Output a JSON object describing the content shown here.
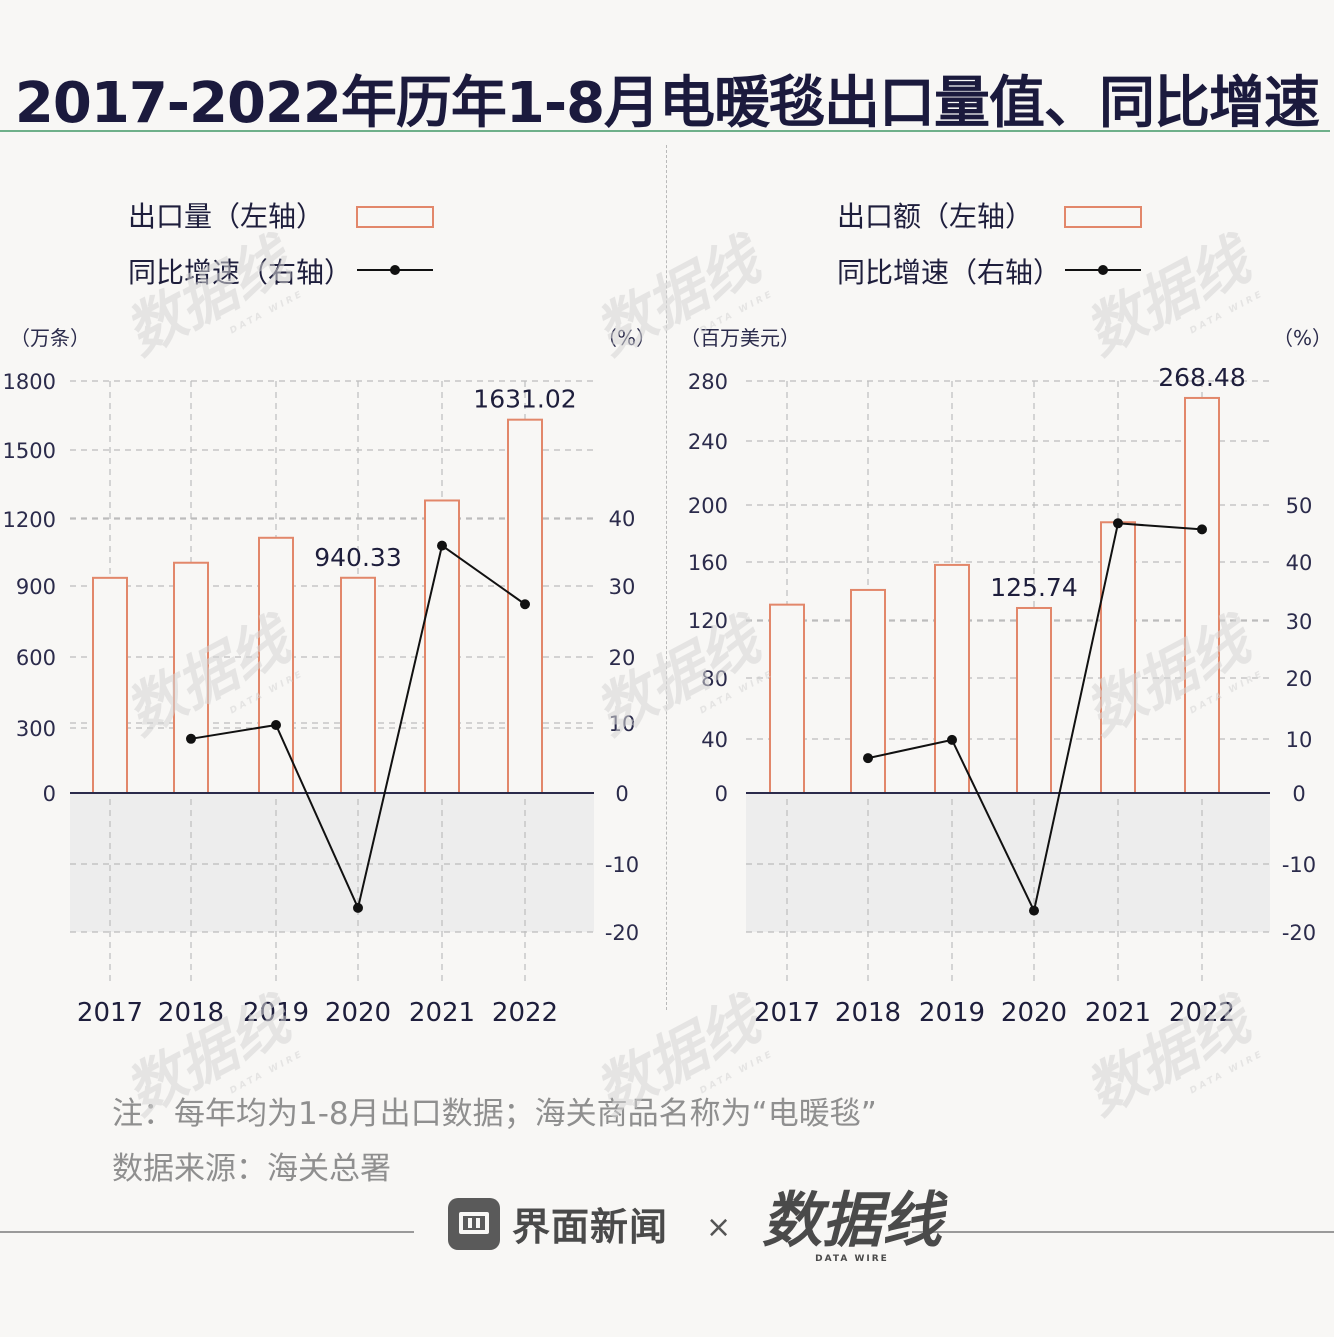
{
  "title": "2017-2022年历年1-8月电暖毯出口量值、同比增速",
  "notes": {
    "note": "注：每年均为1-8月出口数据；海关商品名称为“电暖毯”",
    "source": "数据来源：海关总署"
  },
  "footer": {
    "brand_left": "界面新闻",
    "separator": "×",
    "brand_right": "数据线",
    "brand_right_sub": "DATA WIRE"
  },
  "watermark": {
    "text": "数据线",
    "sub": "DATA WIRE"
  },
  "colors": {
    "bar_stroke": "#e2876a",
    "line": "#111111",
    "grid": "#bdbdbd",
    "negative_band": "#ededed",
    "axis": "#2b2b4b"
  },
  "chart_data": [
    {
      "type": "bar+line",
      "categories": [
        "2017",
        "2018",
        "2019",
        "2020",
        "2021",
        "2022"
      ],
      "legend": [
        "出口量（左轴）",
        "同比增速（右轴）"
      ],
      "left_unit": "（万条）",
      "right_unit": "（%）",
      "left_ticks": [
        "1800",
        "1500",
        "1200",
        "900",
        "600",
        "300",
        "0"
      ],
      "right_ticks": [
        "40",
        "30",
        "20",
        "10",
        "0",
        "-10",
        "-20"
      ],
      "series": [
        {
          "name": "出口量（左轴）",
          "axis": "left",
          "values": [
            940,
            1006,
            1115,
            940.33,
            1278,
            1631.02
          ]
        },
        {
          "name": "同比增速（右轴）",
          "axis": "right",
          "values": [
            null,
            8,
            10,
            -16.5,
            36,
            27.5
          ]
        }
      ],
      "data_labels": [
        {
          "index": 3,
          "text": "940.33"
        },
        {
          "index": 5,
          "text": "1631.02"
        }
      ]
    },
    {
      "type": "bar+line",
      "categories": [
        "2017",
        "2018",
        "2019",
        "2020",
        "2021",
        "2022"
      ],
      "legend": [
        "出口额（左轴）",
        "同比增速（右轴）"
      ],
      "left_unit": "（百万美元）",
      "right_unit": "（%）",
      "left_ticks": [
        "280",
        "240",
        "200",
        "160",
        "120",
        "80",
        "40",
        "0"
      ],
      "right_ticks": [
        "50",
        "40",
        "30",
        "20",
        "10",
        "0",
        "-10",
        "-20"
      ],
      "series": [
        {
          "name": "出口额（左轴）",
          "axis": "left",
          "values": [
            128,
            138,
            155,
            125.74,
            184,
            268.48
          ]
        },
        {
          "name": "同比增速（右轴）",
          "axis": "right",
          "values": [
            null,
            8.5,
            11.5,
            -16.5,
            47,
            46
          ]
        }
      ],
      "data_labels": [
        {
          "index": 3,
          "text": "125.74"
        },
        {
          "index": 5,
          "text": "268.48"
        }
      ]
    }
  ]
}
